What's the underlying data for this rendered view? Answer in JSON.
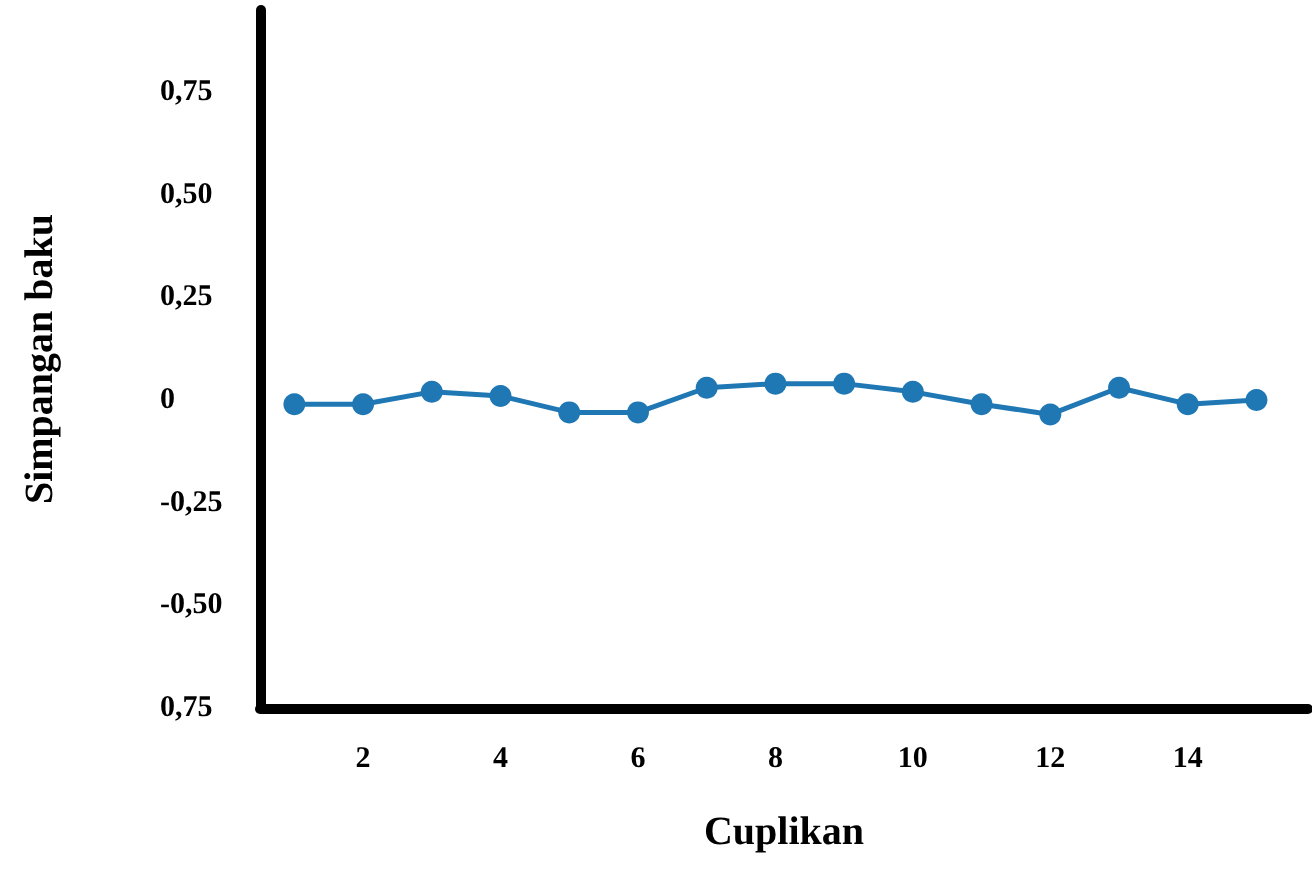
{
  "chart_data": {
    "type": "line",
    "xlabel": "Cuplikan",
    "ylabel": "Simpangan baku",
    "x": [
      1,
      2,
      3,
      4,
      5,
      6,
      7,
      8,
      9,
      10,
      11,
      12,
      13,
      14,
      15
    ],
    "series": [
      {
        "color": "#1f77b4",
        "values": [
          -0.01,
          -0.01,
          0.02,
          0.01,
          -0.03,
          -0.03,
          0.03,
          0.04,
          0.04,
          0.02,
          -0.01,
          -0.035,
          0.03,
          -0.01,
          0
        ]
      }
    ],
    "xlim": [
      0.5,
      15.75
    ],
    "xticks": [
      2,
      4,
      6,
      8,
      10,
      12,
      14
    ],
    "ylim": [
      -0.75,
      0.95
    ],
    "yticks": [
      {
        "value": -0.75,
        "label": "0,75"
      },
      {
        "value": -0.5,
        "label": "-0,50"
      },
      {
        "value": -0.25,
        "label": "-0,25"
      },
      0,
      {
        "value": 0.25,
        "label": "0,25"
      },
      {
        "value": 0.5,
        "label": "0,50"
      },
      {
        "value": 0.75,
        "label": "0,75"
      }
    ],
    "grid": false,
    "marker": "circle",
    "line_style": "solid"
  }
}
